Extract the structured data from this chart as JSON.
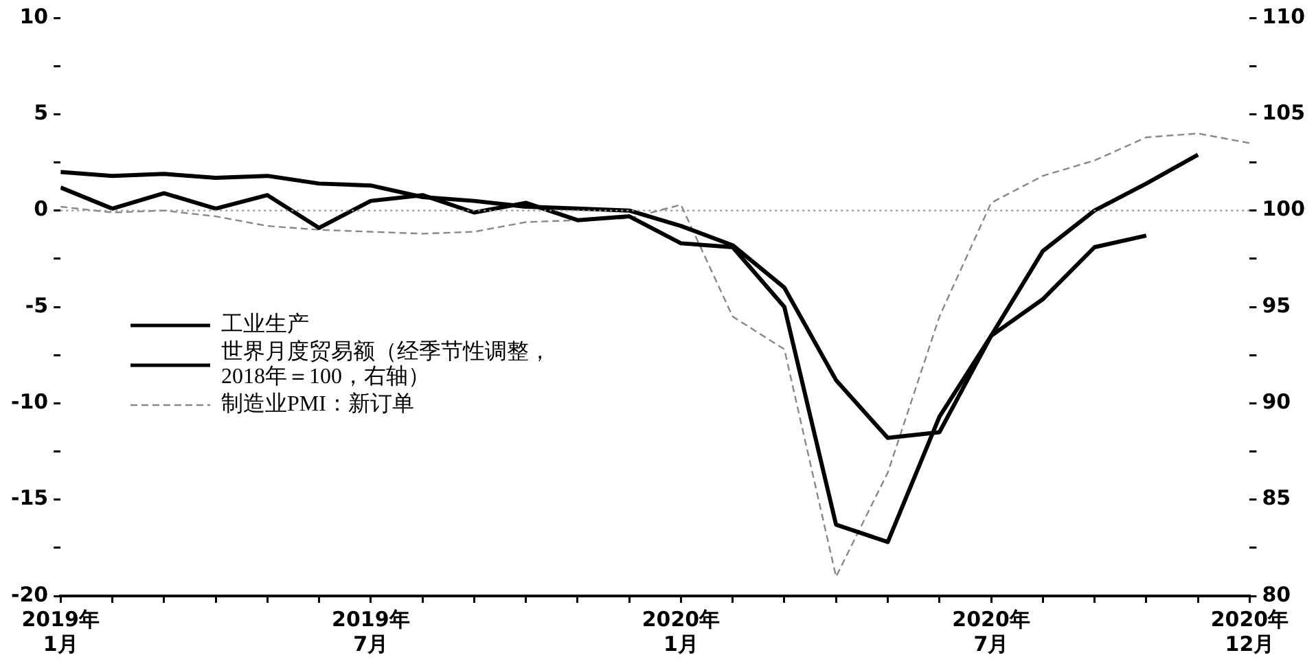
{
  "chart_data": {
    "type": "line",
    "x": [
      "2019-01",
      "2019-02",
      "2019-03",
      "2019-04",
      "2019-05",
      "2019-06",
      "2019-07",
      "2019-08",
      "2019-09",
      "2019-10",
      "2019-11",
      "2019-12",
      "2020-01",
      "2020-02",
      "2020-03",
      "2020-04",
      "2020-05",
      "2020-06",
      "2020-07",
      "2020-08",
      "2020-09",
      "2020-10",
      "2020-11",
      "2020-12"
    ],
    "xlim": [
      "2019-01",
      "2020-12"
    ],
    "xticks": [
      {
        "value": "2019-01",
        "label": "2019年\n1月"
      },
      {
        "value": "2019-02",
        "label": null
      },
      {
        "value": "2019-03",
        "label": null
      },
      {
        "value": "2019-04",
        "label": null
      },
      {
        "value": "2019-05",
        "label": null
      },
      {
        "value": "2019-06",
        "label": null
      },
      {
        "value": "2019-07",
        "label": "2019年\n7月"
      },
      {
        "value": "2019-08",
        "label": null
      },
      {
        "value": "2019-09",
        "label": null
      },
      {
        "value": "2019-10",
        "label": null
      },
      {
        "value": "2019-11",
        "label": null
      },
      {
        "value": "2019-12",
        "label": null
      },
      {
        "value": "2020-01",
        "label": "2020年\n1月"
      },
      {
        "value": "2020-02",
        "label": null
      },
      {
        "value": "2020-03",
        "label": null
      },
      {
        "value": "2020-04",
        "label": null
      },
      {
        "value": "2020-05",
        "label": null
      },
      {
        "value": "2020-06",
        "label": null
      },
      {
        "value": "2020-07",
        "label": "2020年\n7月"
      },
      {
        "value": "2020-08",
        "label": null
      },
      {
        "value": "2020-09",
        "label": null
      },
      {
        "value": "2020-10",
        "label": null
      },
      {
        "value": "2020-11",
        "label": null
      },
      {
        "value": "2020-12",
        "label": "2020年\n12月"
      }
    ],
    "ylim": [
      -20,
      10
    ],
    "yticks": [
      -20,
      {
        "value": -17.5,
        "label": null
      },
      -15,
      {
        "value": -12.5,
        "label": null
      },
      -10,
      {
        "value": -7.5,
        "label": null
      },
      -5,
      {
        "value": -2.5,
        "label": null
      },
      0,
      {
        "value": 2.5,
        "label": null
      },
      5,
      {
        "value": 7.5,
        "label": null
      },
      10
    ],
    "y2lim": [
      80,
      110
    ],
    "y2ticks": [
      80,
      {
        "value": 82.5,
        "label": null
      },
      85,
      {
        "value": 87.5,
        "label": null
      },
      90,
      {
        "value": 92.5,
        "label": null
      },
      95,
      {
        "value": 97.5,
        "label": null
      },
      100,
      {
        "value": 102.5,
        "label": null
      },
      105,
      {
        "value": 107.5,
        "label": null
      },
      110
    ],
    "series": [
      {
        "name": "工业生产",
        "color": "#000000",
        "values": [
          2.0,
          1.8,
          1.9,
          1.7,
          1.8,
          1.4,
          1.3,
          0.7,
          0.5,
          0.2,
          0.1,
          0.0,
          -0.8,
          -1.8,
          -4.0,
          -8.8,
          -11.8,
          -11.5,
          -6.5,
          -2.1,
          0.0,
          1.4,
          2.9,
          null
        ]
      },
      {
        "name": "世界月度贸易额（经季节性调整，2018年＝100，右轴）",
        "color": "#000000",
        "axis": "y2",
        "values": [
          101.2,
          100.1,
          100.9,
          100.1,
          100.8,
          99.1,
          100.5,
          100.8,
          99.9,
          100.4,
          99.5,
          99.7,
          98.3,
          98.1,
          95.0,
          83.7,
          82.8,
          89.3,
          93.5,
          95.4,
          98.1,
          98.7,
          null,
          null
        ]
      },
      {
        "name": "制造业PMI：新订单",
        "color": "#888888",
        "line_style": "dashed",
        "values": [
          0.2,
          -0.1,
          0.0,
          -0.3,
          -0.8,
          -1.0,
          -1.1,
          -1.2,
          -1.1,
          -0.6,
          -0.5,
          -0.4,
          0.3,
          -5.5,
          -7.2,
          -19.0,
          -13.6,
          -5.5,
          0.4,
          1.8,
          2.6,
          3.8,
          4.0,
          3.5
        ]
      }
    ],
    "ref_lines": [
      {
        "axis": "y2",
        "value": 100,
        "color": "#999999",
        "line_style": "dotted"
      }
    ],
    "grid": false,
    "legend": "left",
    "marker": "none"
  }
}
